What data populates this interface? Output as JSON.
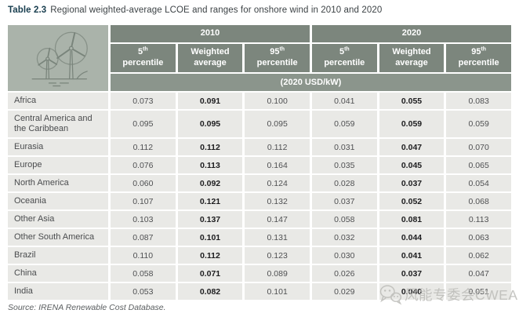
{
  "title": {
    "label": "Table 2.3",
    "text": "Regional weighted-average LCOE and ranges for onshore wind in 2010 and 2020"
  },
  "table": {
    "year_groups": [
      "2010",
      "2020"
    ],
    "column_headers": [
      {
        "base": "5",
        "sup": "th",
        "line2": "percentile"
      },
      {
        "base": "Weighted",
        "sup": "",
        "line2": "average"
      },
      {
        "base": "95",
        "sup": "th",
        "line2": "percentile"
      }
    ],
    "unit": "(2020 USD/kW)",
    "rows": [
      {
        "region": "Africa",
        "values": [
          "0.073",
          "0.091",
          "0.100",
          "0.041",
          "0.055",
          "0.083"
        ]
      },
      {
        "region": "Central America and the Caribbean",
        "values": [
          "0.095",
          "0.095",
          "0.095",
          "0.059",
          "0.059",
          "0.059"
        ]
      },
      {
        "region": "Eurasia",
        "values": [
          "0.112",
          "0.112",
          "0.112",
          "0.031",
          "0.047",
          "0.070"
        ]
      },
      {
        "region": "Europe",
        "values": [
          "0.076",
          "0.113",
          "0.164",
          "0.035",
          "0.045",
          "0.065"
        ]
      },
      {
        "region": "North America",
        "values": [
          "0.060",
          "0.092",
          "0.124",
          "0.028",
          "0.037",
          "0.054"
        ]
      },
      {
        "region": "Oceania",
        "values": [
          "0.107",
          "0.121",
          "0.132",
          "0.037",
          "0.052",
          "0.068"
        ]
      },
      {
        "region": "Other Asia",
        "values": [
          "0.103",
          "0.137",
          "0.147",
          "0.058",
          "0.081",
          "0.113"
        ]
      },
      {
        "region": "Other South America",
        "values": [
          "0.087",
          "0.101",
          "0.131",
          "0.032",
          "0.044",
          "0.063"
        ]
      },
      {
        "region": "Brazil",
        "values": [
          "0.110",
          "0.112",
          "0.123",
          "0.030",
          "0.041",
          "0.062"
        ]
      },
      {
        "region": "China",
        "values": [
          "0.058",
          "0.071",
          "0.089",
          "0.026",
          "0.037",
          "0.047"
        ]
      },
      {
        "region": "India",
        "values": [
          "0.053",
          "0.082",
          "0.101",
          "0.029",
          "0.040",
          "0.051"
        ]
      }
    ],
    "bold_value_columns": [
      1,
      4
    ]
  },
  "source": "Source: IRENA Renewable Cost Database.",
  "watermark": {
    "icon": "wechat-icon",
    "text": "风能专委会CWEA"
  },
  "colors": {
    "header_bg": "#7c867d",
    "unit_bg": "#8b958c",
    "icon_cell_bg": "#aab3aa",
    "row_bg": "#e9e9e6",
    "title_accent": "#173d4e"
  }
}
